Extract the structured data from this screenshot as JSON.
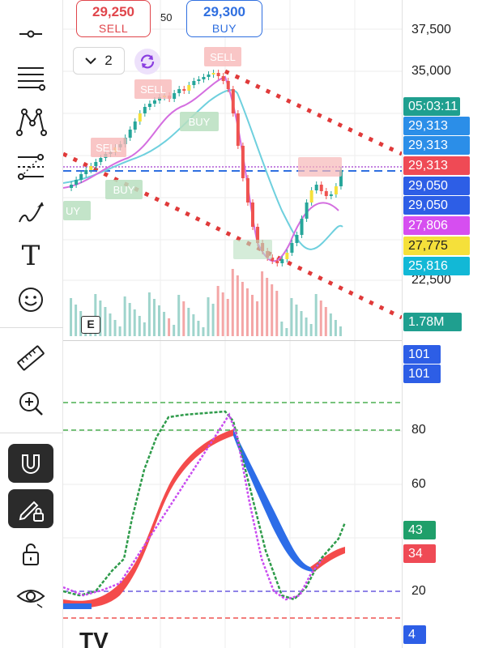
{
  "order_panel": {
    "sell_price": "29,250",
    "sell_label": "SELL",
    "spread": "50",
    "buy_price": "29,300",
    "buy_label": "BUY"
  },
  "interval": {
    "value": "2"
  },
  "events_badge": "E",
  "price_axis": {
    "ticks": [
      "37,500",
      "35,000",
      "22,500"
    ],
    "labels": [
      {
        "text": "05:03:11",
        "color": "#1f9f8f"
      },
      {
        "text": "29,313",
        "color": "#2b8ee8"
      },
      {
        "text": "29,313",
        "color": "#2b8ee8"
      },
      {
        "text": "29,313",
        "color": "#ef4a55"
      },
      {
        "text": "29,050",
        "color": "#2d5ee6"
      },
      {
        "text": "29,050",
        "color": "#2d5ee6"
      },
      {
        "text": "27,806",
        "color": "#d64ef0"
      },
      {
        "text": "27,775",
        "color": "#f5e03a"
      },
      {
        "text": "25,816",
        "color": "#12b8d6"
      },
      {
        "text": "1.78M",
        "color": "#1f9f8f"
      }
    ]
  },
  "oscillator_axis": {
    "ticks": [
      "80",
      "60",
      "20"
    ],
    "labels": [
      {
        "text": "101",
        "color": "#2d5ee6"
      },
      {
        "text": "101",
        "color": "#2d5ee6"
      },
      {
        "text": "43",
        "color": "#1f9f6a"
      },
      {
        "text": "34",
        "color": "#ef4a55"
      },
      {
        "text": "4",
        "color": "#2d5ee6"
      }
    ]
  },
  "signals": {
    "sell": "SELL",
    "buy": "BUY",
    "buy_partial": "UY"
  },
  "toolbar": {
    "tools": [
      "crosshair-icon",
      "horizontal-lines-icon",
      "pattern-icon",
      "fib-icon",
      "brush-icon",
      "text-icon",
      "emoji-icon",
      "ruler-icon",
      "zoom-in-icon",
      "magnet-icon",
      "lock-draw-icon",
      "unlock-icon",
      "eye-icon"
    ],
    "text_tool_glyph": "T"
  },
  "colors": {
    "bull": "#26a69a",
    "bear": "#ef5350",
    "accent_blue": "#2f6fe0",
    "accent_red": "#e0454b"
  }
}
